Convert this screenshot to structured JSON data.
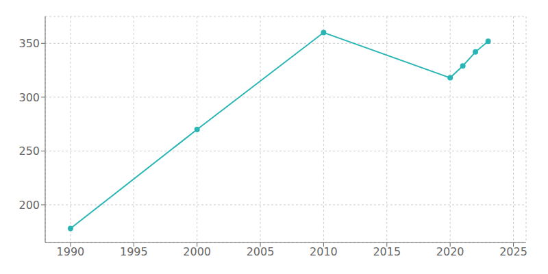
{
  "chart_data": {
    "type": "line",
    "x": [
      1990,
      2000,
      2010,
      2020,
      2021,
      2022,
      2023
    ],
    "values": [
      178,
      270,
      360,
      318,
      329,
      342,
      352
    ],
    "color": "#2ab5b5",
    "marker": "o",
    "xlim": [
      1988,
      2026
    ],
    "ylim": [
      165,
      375
    ],
    "xticks": [
      1990,
      1995,
      2000,
      2005,
      2010,
      2015,
      2020,
      2025
    ],
    "yticks": [
      200,
      250,
      300,
      350
    ],
    "grid": true
  }
}
